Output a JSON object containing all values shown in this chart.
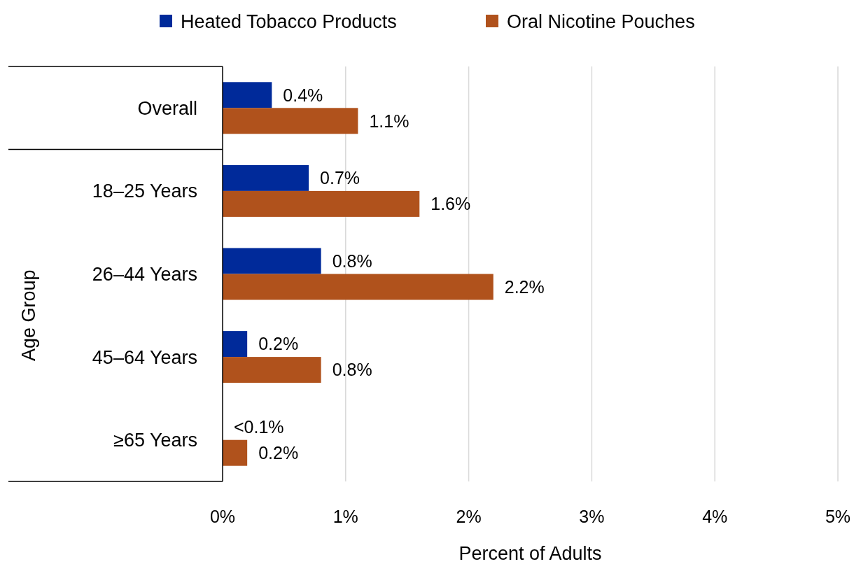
{
  "chart_data": {
    "type": "bar",
    "orientation": "horizontal",
    "xlabel": "Percent of Adults",
    "ylabel": "Age Group",
    "categories": [
      "Overall",
      "18–25 Years",
      "26–44 Years",
      "45–64 Years",
      "≥65 Years"
    ],
    "series": [
      {
        "name": "Heated Tobacco Products",
        "color": "#002a9a",
        "values": [
          0.4,
          0.7,
          0.8,
          0.2,
          0
        ],
        "value_labels": [
          "0.4%",
          "0.7%",
          "0.8%",
          "0.2%",
          "<0.1%"
        ]
      },
      {
        "name": "Oral Nicotine Pouches",
        "color": "#b0521c",
        "values": [
          1.1,
          1.6,
          2.2,
          0.8,
          0.2
        ],
        "value_labels": [
          "1.1%",
          "1.6%",
          "2.2%",
          "0.8%",
          "0.2%"
        ]
      }
    ],
    "xlim": [
      0,
      5
    ],
    "xticks": [
      {
        "value": 0,
        "label": "0%"
      },
      {
        "value": 1,
        "label": "1%"
      },
      {
        "value": 2,
        "label": "2%"
      },
      {
        "value": 3,
        "label": "3%"
      },
      {
        "value": 4,
        "label": "4%"
      },
      {
        "value": 5,
        "label": "5%"
      }
    ],
    "grid": "x",
    "legend": "top"
  }
}
